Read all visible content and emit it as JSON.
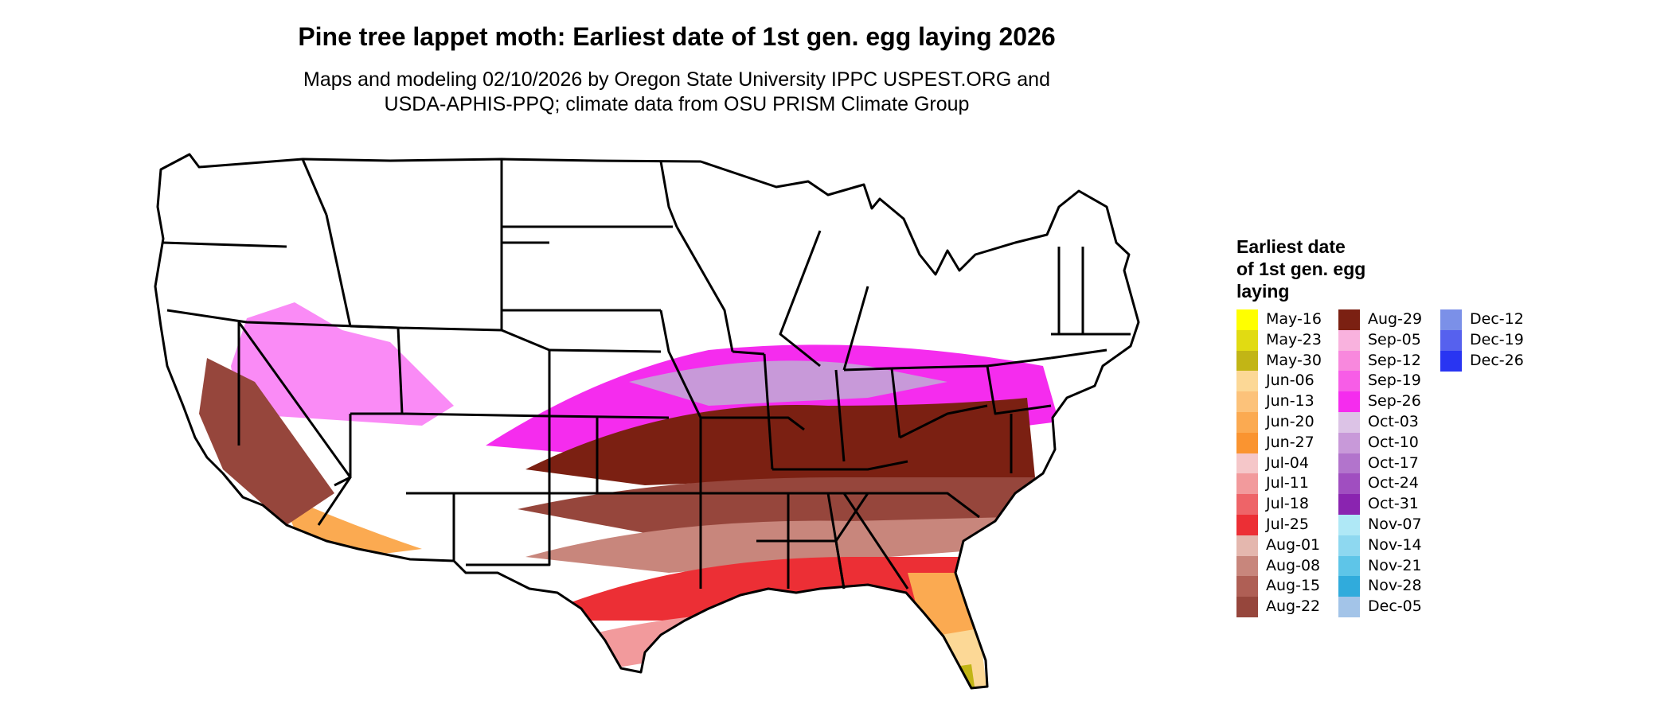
{
  "title": "Pine tree lappet moth: Earliest date of 1st gen. egg laying 2026",
  "subtitle_line1": "Maps and modeling 02/10/2026 by Oregon State University IPPC USPEST.ORG and",
  "subtitle_line2": "USDA-APHIS-PPQ; climate data from OSU PRISM Climate Group",
  "legend": {
    "title": "Earliest date\nof 1st gen. egg\nlaying",
    "columns": [
      [
        {
          "label": "May-16",
          "color": "#FFFF00"
        },
        {
          "label": "May-23",
          "color": "#E1DB12"
        },
        {
          "label": "May-30",
          "color": "#C2B515"
        },
        {
          "label": "Jun-06",
          "color": "#FCD896"
        },
        {
          "label": "Jun-13",
          "color": "#FCC27A"
        },
        {
          "label": "Jun-20",
          "color": "#FBAA51"
        },
        {
          "label": "Jun-27",
          "color": "#FA9430"
        },
        {
          "label": "Jul-04",
          "color": "#F5C7C9"
        },
        {
          "label": "Jul-11",
          "color": "#F29A9C"
        },
        {
          "label": "Jul-18",
          "color": "#EE6468"
        },
        {
          "label": "Jul-25",
          "color": "#EC2F35"
        },
        {
          "label": "Aug-01",
          "color": "#E4B7AE"
        },
        {
          "label": "Aug-08",
          "color": "#C8867C"
        },
        {
          "label": "Aug-15",
          "color": "#AF5F55"
        },
        {
          "label": "Aug-22",
          "color": "#96463C"
        }
      ],
      [
        {
          "label": "Aug-29",
          "color": "#7B2012"
        },
        {
          "label": "Sep-05",
          "color": "#F9B2DE"
        },
        {
          "label": "Sep-12",
          "color": "#F888DD"
        },
        {
          "label": "Sep-19",
          "color": "#F75DE7"
        },
        {
          "label": "Sep-26",
          "color": "#F52CEE"
        },
        {
          "label": "Oct-03",
          "color": "#DCC3E6"
        },
        {
          "label": "Oct-10",
          "color": "#C899D9"
        },
        {
          "label": "Oct-17",
          "color": "#B274CC"
        },
        {
          "label": "Oct-24",
          "color": "#A04EC0"
        },
        {
          "label": "Oct-31",
          "color": "#8A24B0"
        },
        {
          "label": "Nov-07",
          "color": "#AFE8F6"
        },
        {
          "label": "Nov-14",
          "color": "#8ED8F0"
        },
        {
          "label": "Nov-21",
          "color": "#5EC5E8"
        },
        {
          "label": "Nov-28",
          "color": "#30ABDC"
        },
        {
          "label": "Dec-05",
          "color": "#A3C4E8"
        }
      ],
      [
        {
          "label": "Dec-12",
          "color": "#7B90E8"
        },
        {
          "label": "Dec-19",
          "color": "#5661EE"
        },
        {
          "label": "Dec-26",
          "color": "#2935F2"
        }
      ]
    ]
  }
}
